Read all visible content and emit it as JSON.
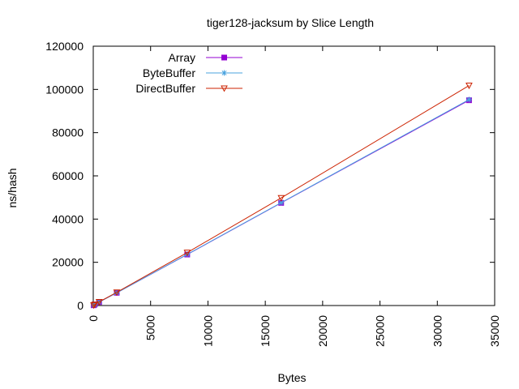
{
  "chart_data": {
    "type": "line",
    "title": "tiger128-jacksum by Slice Length",
    "xlabel": "Bytes",
    "ylabel": "ns/hash",
    "xlim": [
      0,
      35000
    ],
    "ylim": [
      0,
      120000
    ],
    "xticks": [
      0,
      5000,
      10000,
      15000,
      20000,
      25000,
      30000,
      35000
    ],
    "yticks": [
      0,
      20000,
      40000,
      60000,
      80000,
      100000,
      120000
    ],
    "grid": false,
    "legend_position": "top-left",
    "series": [
      {
        "name": "Array",
        "color": "#9400d3",
        "marker": "square",
        "x": [
          32,
          128,
          512,
          2048,
          8192,
          16384,
          32768
        ],
        "y": [
          120,
          450,
          1600,
          5900,
          23600,
          47500,
          95000
        ]
      },
      {
        "name": "ByteBuffer",
        "color": "#4aa3df",
        "marker": "asterisk",
        "x": [
          32,
          128,
          512,
          2048,
          8192,
          16384,
          32768
        ],
        "y": [
          120,
          450,
          1600,
          5900,
          23700,
          47600,
          95300
        ]
      },
      {
        "name": "DirectBuffer",
        "color": "#cc2200",
        "marker": "triangle-down",
        "x": [
          32,
          128,
          512,
          2048,
          8192,
          16384,
          32768
        ],
        "y": [
          130,
          470,
          1700,
          6100,
          24500,
          49800,
          101800
        ]
      }
    ]
  }
}
